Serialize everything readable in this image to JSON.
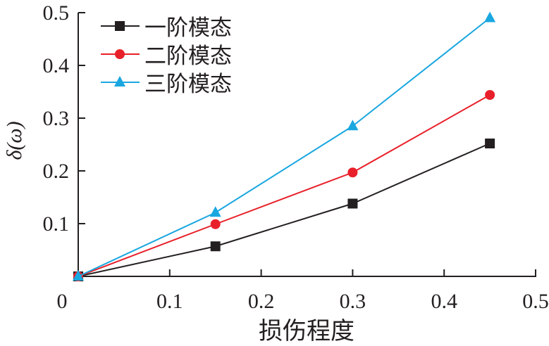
{
  "chart_data": {
    "type": "line",
    "title": "",
    "xlabel": "损伤程度",
    "ylabel": "δ(ω)",
    "xlim": [
      0,
      0.5
    ],
    "ylim": [
      0,
      0.5
    ],
    "xticks": [
      "0",
      "0.1",
      "0.2",
      "0.3",
      "0.4",
      "0.5"
    ],
    "yticks": [
      "0.1",
      "0.2",
      "0.3",
      "0.4",
      "0.5"
    ],
    "grid": false,
    "legend_position": "top-left",
    "x": [
      0,
      0.15,
      0.3,
      0.45
    ],
    "series": [
      {
        "name": "一阶模态",
        "values": [
          0,
          0.057,
          0.138,
          0.252
        ],
        "color": "#231f20",
        "marker": "square"
      },
      {
        "name": "二阶模态",
        "values": [
          0,
          0.099,
          0.197,
          0.344
        ],
        "color": "#e8202a",
        "marker": "circle"
      },
      {
        "name": "三阶模态",
        "values": [
          0,
          0.121,
          0.285,
          0.49
        ],
        "color": "#1aa7e0",
        "marker": "triangle"
      }
    ]
  }
}
